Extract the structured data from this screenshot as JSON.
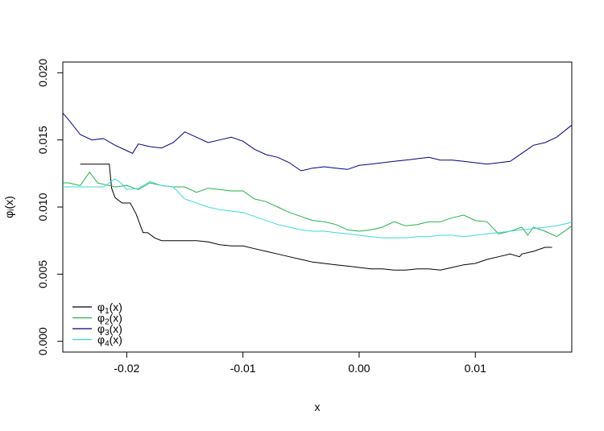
{
  "chart_data": {
    "type": "line",
    "xlabel": "x",
    "ylabel": "φᵢ(x)",
    "xlim": [
      -0.0255,
      0.0183
    ],
    "ylim": [
      -0.0008,
      0.0208
    ],
    "xticks": [
      -0.02,
      -0.01,
      0.0,
      0.01
    ],
    "xtick_labels": [
      "-0.02",
      "-0.01",
      "0.00",
      "0.01"
    ],
    "yticks": [
      0.0,
      0.005,
      0.01,
      0.015,
      0.02
    ],
    "ytick_labels": [
      "0.000",
      "0.005",
      "0.010",
      "0.015",
      "0.020"
    ],
    "grid": false,
    "legend_position": "bottom-left",
    "series": [
      {
        "name": "φ1(x)",
        "base": "φ",
        "sub": "1",
        "suffix": "(x)",
        "color": "#000000",
        "x": [
          -0.024,
          -0.0215,
          -0.0213,
          -0.021,
          -0.0204,
          -0.0197,
          -0.0192,
          -0.0186,
          -0.0182,
          -0.0176,
          -0.017,
          -0.016,
          -0.015,
          -0.014,
          -0.013,
          -0.012,
          -0.011,
          -0.01,
          -0.009,
          -0.008,
          -0.007,
          -0.006,
          -0.005,
          -0.004,
          -0.003,
          -0.002,
          -0.001,
          0.0,
          0.001,
          0.002,
          0.003,
          0.004,
          0.005,
          0.006,
          0.007,
          0.008,
          0.009,
          0.01,
          0.011,
          0.012,
          0.013,
          0.0138,
          0.014,
          0.015,
          0.016,
          0.0166
        ],
        "y": [
          0.0132,
          0.0132,
          0.0114,
          0.0107,
          0.0103,
          0.0103,
          0.0095,
          0.0081,
          0.0081,
          0.0077,
          0.0075,
          0.0075,
          0.0075,
          0.0075,
          0.0074,
          0.0072,
          0.0071,
          0.0071,
          0.0069,
          0.0067,
          0.0065,
          0.0063,
          0.0061,
          0.0059,
          0.0058,
          0.0057,
          0.0056,
          0.0055,
          0.0054,
          0.0054,
          0.0053,
          0.0053,
          0.0054,
          0.0054,
          0.0053,
          0.0055,
          0.0057,
          0.0058,
          0.0061,
          0.0063,
          0.0065,
          0.0063,
          0.0065,
          0.0067,
          0.007,
          0.007
        ]
      },
      {
        "name": "φ2(x)",
        "base": "φ",
        "sub": "2",
        "suffix": "(x)",
        "color": "#22b14c",
        "x": [
          -0.0255,
          -0.025,
          -0.024,
          -0.0232,
          -0.0225,
          -0.022,
          -0.021,
          -0.02,
          -0.019,
          -0.018,
          -0.017,
          -0.016,
          -0.015,
          -0.014,
          -0.013,
          -0.012,
          -0.011,
          -0.01,
          -0.009,
          -0.008,
          -0.007,
          -0.006,
          -0.005,
          -0.004,
          -0.003,
          -0.002,
          -0.001,
          0.0,
          0.001,
          0.0015,
          0.002,
          0.003,
          0.004,
          0.005,
          0.006,
          0.007,
          0.008,
          0.009,
          0.01,
          0.011,
          0.012,
          0.013,
          0.014,
          0.0145,
          0.015,
          0.016,
          0.017,
          0.018,
          0.0183
        ],
        "y": [
          0.0118,
          0.0118,
          0.0116,
          0.0126,
          0.0118,
          0.0117,
          0.0115,
          0.0116,
          0.0113,
          0.0118,
          0.0116,
          0.0115,
          0.0115,
          0.0111,
          0.0114,
          0.0113,
          0.0112,
          0.0112,
          0.0106,
          0.0104,
          0.01,
          0.0096,
          0.0093,
          0.009,
          0.0089,
          0.0087,
          0.0083,
          0.0082,
          0.0083,
          0.0084,
          0.0085,
          0.0089,
          0.0086,
          0.0087,
          0.0089,
          0.0089,
          0.0092,
          0.0094,
          0.009,
          0.0089,
          0.008,
          0.0082,
          0.0085,
          0.0079,
          0.0085,
          0.0082,
          0.0078,
          0.0084,
          0.0086
        ]
      },
      {
        "name": "φ3(x)",
        "base": "φ",
        "sub": "3",
        "suffix": "(x)",
        "color": "#00007f",
        "x": [
          -0.0255,
          -0.025,
          -0.024,
          -0.023,
          -0.022,
          -0.021,
          -0.02,
          -0.0195,
          -0.019,
          -0.018,
          -0.017,
          -0.016,
          -0.015,
          -0.014,
          -0.013,
          -0.012,
          -0.011,
          -0.01,
          -0.009,
          -0.008,
          -0.007,
          -0.006,
          -0.005,
          -0.004,
          -0.003,
          -0.002,
          -0.001,
          0.0,
          0.001,
          0.002,
          0.003,
          0.004,
          0.005,
          0.006,
          0.007,
          0.008,
          0.009,
          0.01,
          0.011,
          0.012,
          0.013,
          0.014,
          0.015,
          0.016,
          0.017,
          0.018,
          0.0183
        ],
        "y": [
          0.017,
          0.0165,
          0.0154,
          0.015,
          0.0151,
          0.0146,
          0.0142,
          0.014,
          0.0147,
          0.0145,
          0.0144,
          0.0148,
          0.0156,
          0.0152,
          0.0148,
          0.015,
          0.0152,
          0.0149,
          0.0143,
          0.0139,
          0.0137,
          0.0133,
          0.0127,
          0.0129,
          0.013,
          0.0129,
          0.0128,
          0.0131,
          0.0132,
          0.0133,
          0.0134,
          0.0135,
          0.0136,
          0.0137,
          0.0135,
          0.0135,
          0.0134,
          0.0133,
          0.0132,
          0.0133,
          0.0134,
          0.014,
          0.0146,
          0.0148,
          0.0152,
          0.0159,
          0.0161
        ]
      },
      {
        "name": "φ4(x)",
        "base": "φ",
        "sub": "4",
        "suffix": "(x)",
        "color": "#3dd8d8",
        "x": [
          -0.0255,
          -0.024,
          -0.023,
          -0.022,
          -0.021,
          -0.0205,
          -0.02,
          -0.019,
          -0.018,
          -0.017,
          -0.016,
          -0.015,
          -0.014,
          -0.013,
          -0.012,
          -0.011,
          -0.01,
          -0.009,
          -0.008,
          -0.007,
          -0.006,
          -0.005,
          -0.004,
          -0.003,
          -0.002,
          -0.001,
          0.0,
          0.001,
          0.002,
          0.003,
          0.004,
          0.005,
          0.006,
          0.007,
          0.008,
          0.009,
          0.01,
          0.011,
          0.012,
          0.013,
          0.014,
          0.015,
          0.016,
          0.017,
          0.018,
          0.0183
        ],
        "y": [
          0.0115,
          0.0115,
          0.0115,
          0.0115,
          0.0121,
          0.0118,
          0.0113,
          0.0114,
          0.0119,
          0.0116,
          0.0115,
          0.0106,
          0.0103,
          0.01,
          0.0098,
          0.0097,
          0.0096,
          0.0093,
          0.009,
          0.0087,
          0.0085,
          0.0083,
          0.0082,
          0.0082,
          0.0081,
          0.008,
          0.0079,
          0.0078,
          0.0077,
          0.0077,
          0.0077,
          0.0078,
          0.0078,
          0.0079,
          0.0079,
          0.0078,
          0.0079,
          0.008,
          0.0081,
          0.0082,
          0.0083,
          0.0084,
          0.0085,
          0.0086,
          0.0088,
          0.0089
        ]
      }
    ]
  }
}
